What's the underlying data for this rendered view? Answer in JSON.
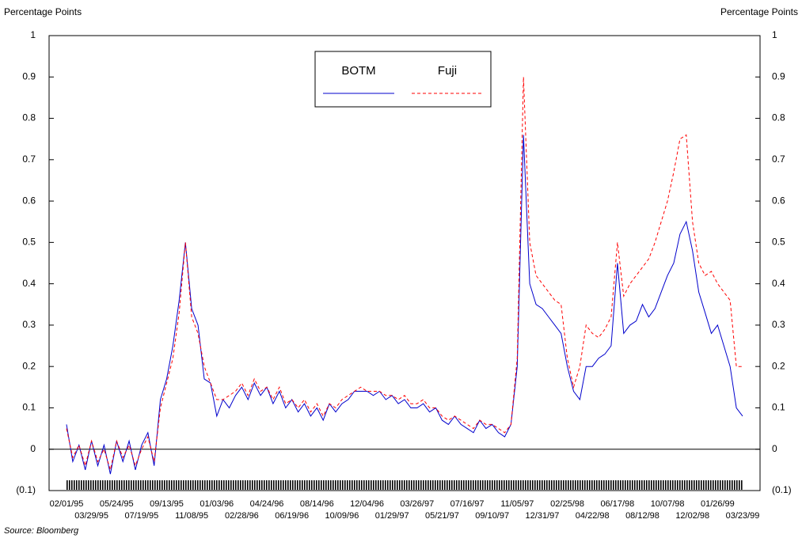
{
  "chart_data": {
    "type": "line",
    "y_axis_label": "Percentage Points",
    "y2_axis_label": "Percentage Points",
    "source": "Source: Bloomberg",
    "categories": [
      "02/01/95",
      null,
      null,
      null,
      "03/29/95",
      null,
      null,
      null,
      "05/24/95",
      null,
      null,
      null,
      "07/19/95",
      null,
      null,
      null,
      "09/13/95",
      null,
      null,
      null,
      "11/08/95",
      null,
      null,
      null,
      "01/03/96",
      null,
      null,
      null,
      "02/28/96",
      null,
      null,
      null,
      "04/24/96",
      null,
      null,
      null,
      "06/19/96",
      null,
      null,
      null,
      "08/14/96",
      null,
      null,
      null,
      "10/09/96",
      null,
      null,
      null,
      "12/04/96",
      null,
      null,
      null,
      "01/29/97",
      null,
      null,
      null,
      "03/26/97",
      null,
      null,
      null,
      "05/21/97",
      null,
      null,
      null,
      "07/16/97",
      null,
      null,
      null,
      "09/10/97",
      null,
      null,
      null,
      "11/05/97",
      null,
      null,
      null,
      "12/31/97",
      null,
      null,
      null,
      "02/25/98",
      null,
      null,
      null,
      "04/22/98",
      null,
      null,
      null,
      "06/17/98",
      null,
      null,
      null,
      "08/12/98",
      null,
      null,
      null,
      "10/07/98",
      null,
      null,
      null,
      "12/02/98",
      null,
      null,
      null,
      "01/26/99",
      null,
      null,
      null,
      "03/23/99"
    ],
    "series": [
      {
        "name": "BOTM",
        "color": "#0000cc",
        "dash": false,
        "values": [
          0.06,
          -0.03,
          0.01,
          -0.05,
          0.02,
          -0.04,
          0.01,
          -0.06,
          0.02,
          -0.03,
          0.02,
          -0.05,
          0.01,
          0.04,
          -0.04,
          0.12,
          0.17,
          0.25,
          0.36,
          0.5,
          0.34,
          0.3,
          0.17,
          0.16,
          0.08,
          0.12,
          0.1,
          0.13,
          0.15,
          0.12,
          0.16,
          0.13,
          0.15,
          0.11,
          0.14,
          0.1,
          0.12,
          0.09,
          0.11,
          0.08,
          0.1,
          0.07,
          0.11,
          0.09,
          0.11,
          0.12,
          0.14,
          0.14,
          0.14,
          0.13,
          0.14,
          0.12,
          0.13,
          0.11,
          0.12,
          0.1,
          0.1,
          0.11,
          0.09,
          0.1,
          0.07,
          0.06,
          0.08,
          0.06,
          0.05,
          0.04,
          0.07,
          0.05,
          0.06,
          0.04,
          0.03,
          0.06,
          0.2,
          0.76,
          0.4,
          0.35,
          0.34,
          0.32,
          0.3,
          0.28,
          0.2,
          0.14,
          0.12,
          0.2,
          0.2,
          0.22,
          0.23,
          0.25,
          0.45,
          0.28,
          0.3,
          0.31,
          0.35,
          0.32,
          0.34,
          0.38,
          0.42,
          0.45,
          0.52,
          0.55,
          0.48,
          0.38,
          0.33,
          0.28,
          0.3,
          0.25,
          0.2,
          0.1,
          0.08
        ]
      },
      {
        "name": "Fuji",
        "color": "#ff0000",
        "dash": true,
        "values": [
          0.05,
          -0.02,
          0.01,
          -0.04,
          0.02,
          -0.03,
          0.0,
          -0.05,
          0.02,
          -0.02,
          0.01,
          -0.04,
          0.0,
          0.03,
          -0.03,
          0.1,
          0.16,
          0.22,
          0.33,
          0.5,
          0.32,
          0.28,
          0.2,
          0.16,
          0.12,
          0.12,
          0.13,
          0.14,
          0.16,
          0.13,
          0.17,
          0.14,
          0.15,
          0.12,
          0.15,
          0.11,
          0.12,
          0.1,
          0.12,
          0.09,
          0.11,
          0.08,
          0.11,
          0.1,
          0.12,
          0.13,
          0.14,
          0.15,
          0.14,
          0.14,
          0.14,
          0.13,
          0.13,
          0.12,
          0.13,
          0.11,
          0.11,
          0.12,
          0.1,
          0.1,
          0.08,
          0.07,
          0.08,
          0.07,
          0.06,
          0.05,
          0.07,
          0.06,
          0.06,
          0.05,
          0.04,
          0.06,
          0.22,
          0.9,
          0.5,
          0.42,
          0.4,
          0.38,
          0.36,
          0.35,
          0.22,
          0.15,
          0.2,
          0.3,
          0.28,
          0.27,
          0.29,
          0.32,
          0.5,
          0.37,
          0.4,
          0.42,
          0.44,
          0.46,
          0.5,
          0.55,
          0.6,
          0.67,
          0.75,
          0.76,
          0.55,
          0.45,
          0.42,
          0.43,
          0.4,
          0.38,
          0.36,
          0.2,
          0.2
        ]
      }
    ],
    "ylim": [
      -0.1,
      1
    ],
    "yticks": [
      {
        "value": -0.1,
        "label": "(0.1)"
      },
      0,
      0.1,
      0.2,
      0.3,
      0.4,
      0.5,
      0.6,
      0.7,
      0.8,
      0.9,
      1
    ],
    "zero_line": true
  }
}
